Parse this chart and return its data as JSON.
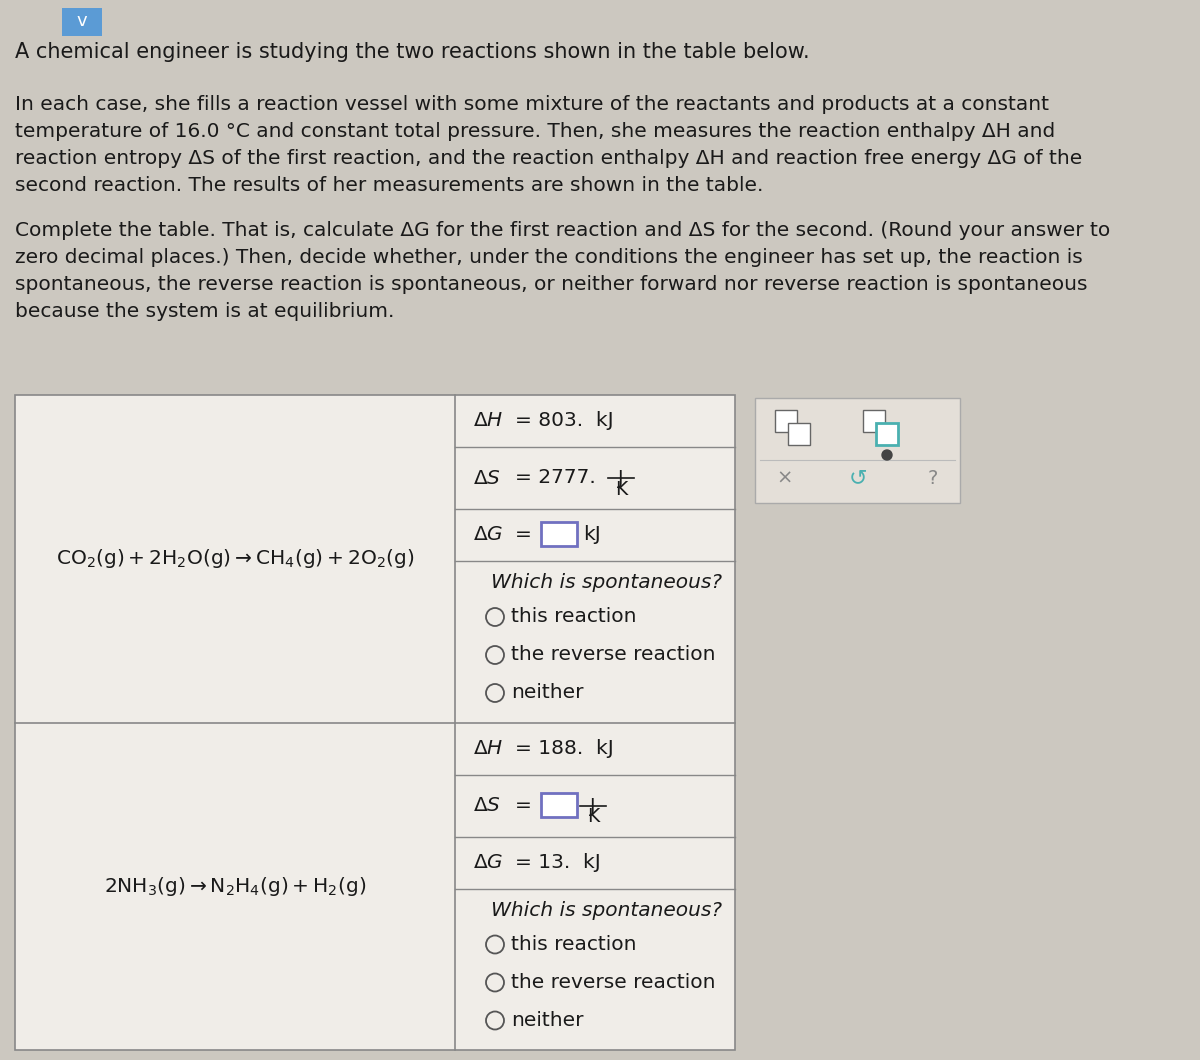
{
  "bg_color": "#ccc8c0",
  "table_bg": "#f0ede8",
  "cell_bg": "#f0ede8",
  "text_color": "#1a1a1a",
  "border_color": "#888888",
  "input_box_color": "#7070c0",
  "title_text": "A chemical engineer is studying the two reactions shown in the table below.",
  "para1_lines": [
    "In each case, she fills a reaction vessel with some mixture of the reactants and products at a constant",
    "temperature of 16.0 °C and constant total pressure. Then, she measures the reaction enthalpy ΔH and",
    "reaction entropy ΔS of the first reaction, and the reaction enthalpy ΔH and reaction free energy ΔG of the",
    "second reaction. The results of her measurements are shown in the table."
  ],
  "para2_lines": [
    "Complete the table. That is, calculate ΔG for the first reaction and ΔS for the second. (Round your answer to",
    "zero decimal places.) Then, decide whether, under the conditions the engineer has set up, the reaction is",
    "spontaneous, the reverse reaction is spontaneous, or neither forward nor reverse reaction is spontaneous",
    "because the system is at equilibrium."
  ],
  "radio_options": [
    "this reaction",
    "the reverse reaction",
    "neither"
  ],
  "widget_bg": "#e4dfd8"
}
